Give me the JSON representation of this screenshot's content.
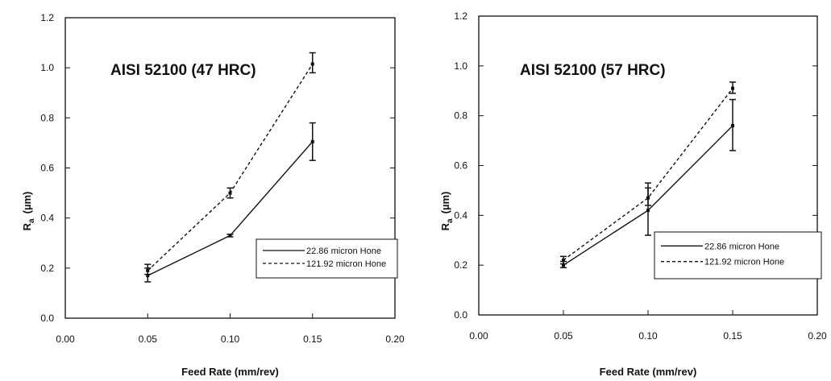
{
  "chart_data": [
    {
      "type": "line",
      "annotation": "AISI 52100 (47 HRC)",
      "xlabel": "Feed Rate (mm/rev)",
      "ylabel_main": "R",
      "ylabel_sub": "a",
      "ylabel_unit": "(µm)",
      "xlim": [
        0.0,
        0.2
      ],
      "ylim": [
        0.0,
        1.2
      ],
      "x_ticks": [
        "0.00",
        "0.05",
        "0.10",
        "0.15",
        "0.20"
      ],
      "y_ticks": [
        "0.0",
        "0.2",
        "0.4",
        "0.6",
        "0.8",
        "1.0",
        "1.2"
      ],
      "grid": false,
      "legend_position": "bottom-right",
      "series": [
        {
          "name": "22.86 micron Hone",
          "style": "solid",
          "x": [
            0.05,
            0.1,
            0.15
          ],
          "y": [
            0.17,
            0.33,
            0.705
          ],
          "err_low": [
            0.145,
            0.325,
            0.63
          ],
          "err_high": [
            0.2,
            0.335,
            0.78
          ]
        },
        {
          "name": "121.92 micron Hone",
          "style": "dashed",
          "x": [
            0.05,
            0.1,
            0.15
          ],
          "y": [
            0.19,
            0.5,
            1.015
          ],
          "err_low": [
            0.175,
            0.48,
            0.98
          ],
          "err_high": [
            0.215,
            0.52,
            1.06
          ]
        }
      ]
    },
    {
      "type": "line",
      "annotation": "AISI 52100 (57 HRC)",
      "xlabel": "Feed Rate (mm/rev)",
      "ylabel_main": "R",
      "ylabel_sub": "a",
      "ylabel_unit": "(µm)",
      "xlim": [
        0.0,
        0.2
      ],
      "ylim": [
        0.0,
        1.2
      ],
      "x_ticks": [
        "0.00",
        "0.05",
        "0.10",
        "0.15",
        "0.20"
      ],
      "y_ticks": [
        "0.0",
        "0.2",
        "0.4",
        "0.6",
        "0.8",
        "1.0",
        "1.2"
      ],
      "grid": false,
      "legend_position": "bottom-right",
      "series": [
        {
          "name": "22.86 micron Hone",
          "style": "solid",
          "x": [
            0.05,
            0.1,
            0.15
          ],
          "y": [
            0.2,
            0.42,
            0.76
          ],
          "err_low": [
            0.19,
            0.32,
            0.66
          ],
          "err_high": [
            0.215,
            0.53,
            0.865
          ]
        },
        {
          "name": "121.92 micron Hone",
          "style": "dashed",
          "x": [
            0.05,
            0.1,
            0.15
          ],
          "y": [
            0.22,
            0.47,
            0.91
          ],
          "err_low": [
            0.205,
            0.44,
            0.89
          ],
          "err_high": [
            0.235,
            0.51,
            0.935
          ]
        }
      ]
    }
  ]
}
